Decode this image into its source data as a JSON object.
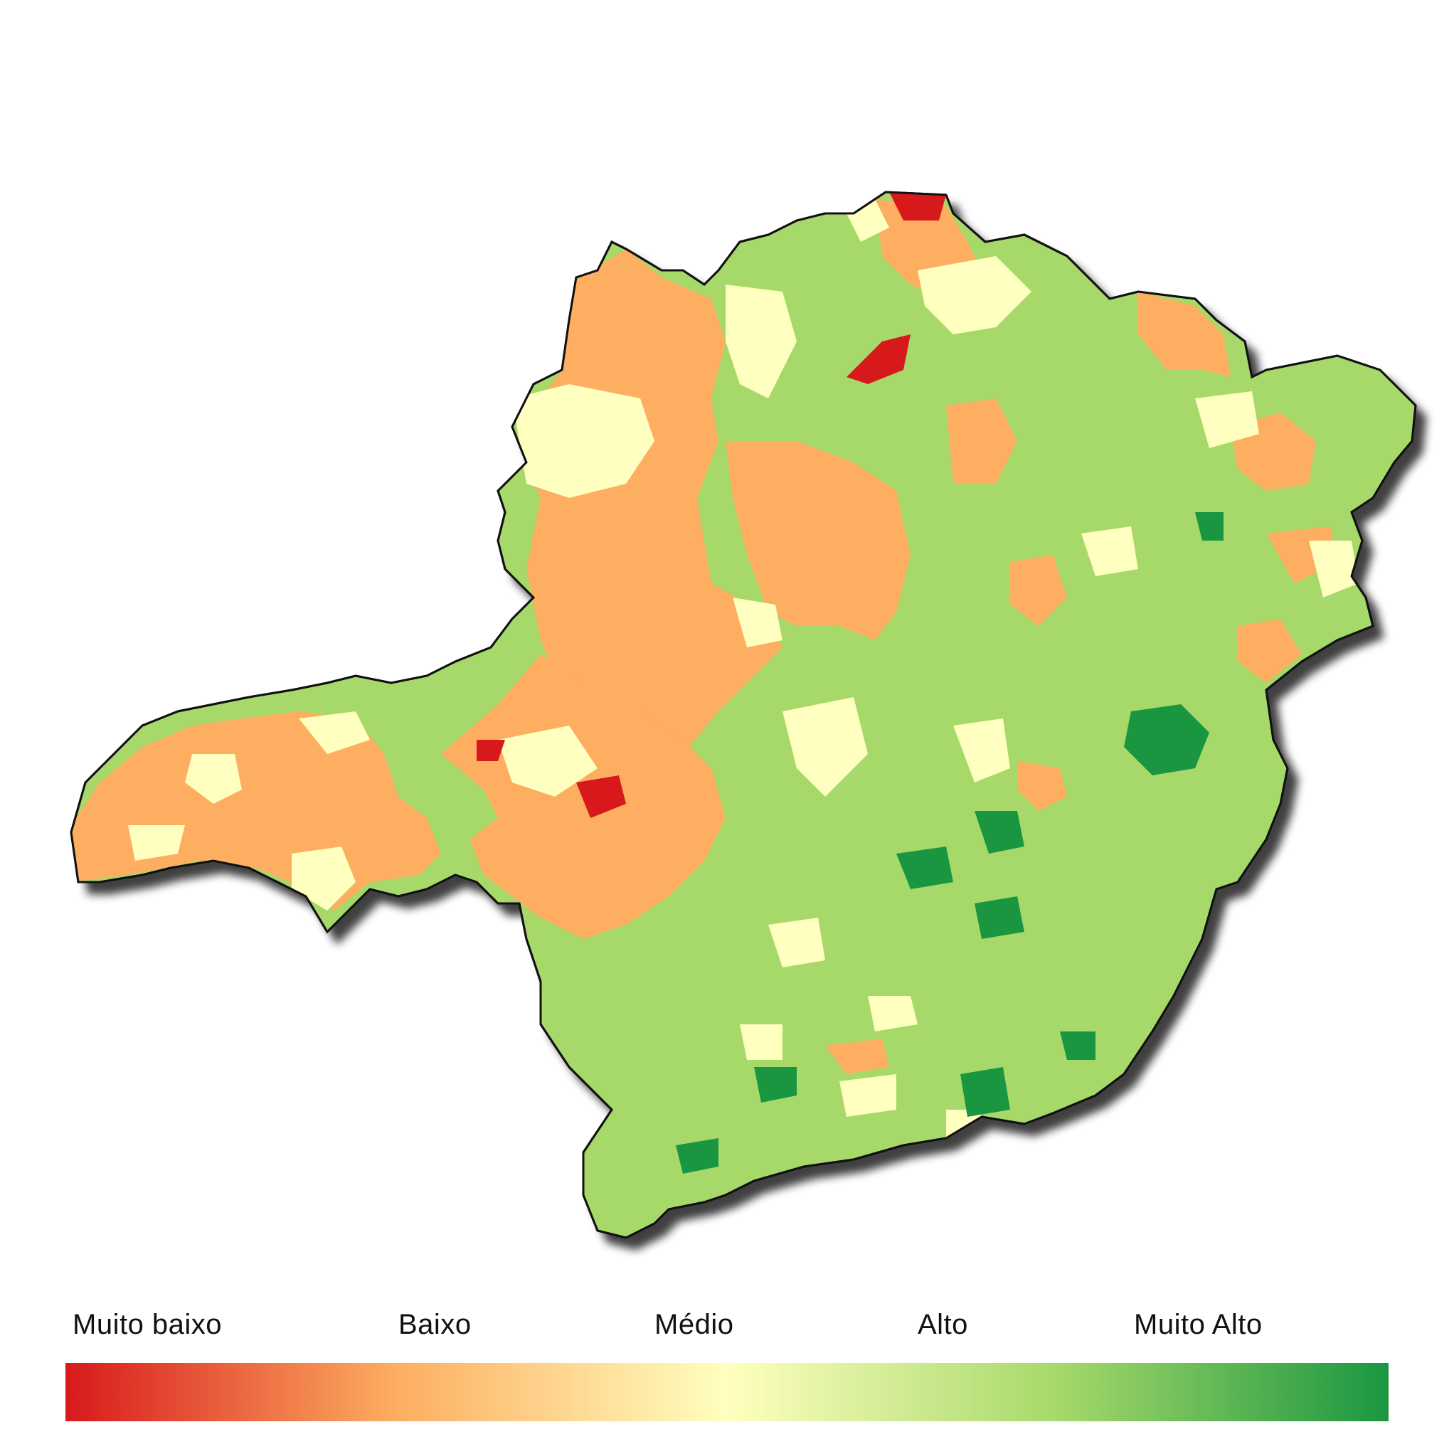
{
  "legend": {
    "labels": [
      "Muito baixo",
      "Baixo",
      "Médio",
      "Alto",
      "Muito Alto"
    ],
    "colors": [
      "#d7191c",
      "#fdae61",
      "#ffffbf",
      "#a6d96a",
      "#1a9641"
    ]
  },
  "map": {
    "outline_color": "#111111",
    "shadow_color": "#333333"
  }
}
